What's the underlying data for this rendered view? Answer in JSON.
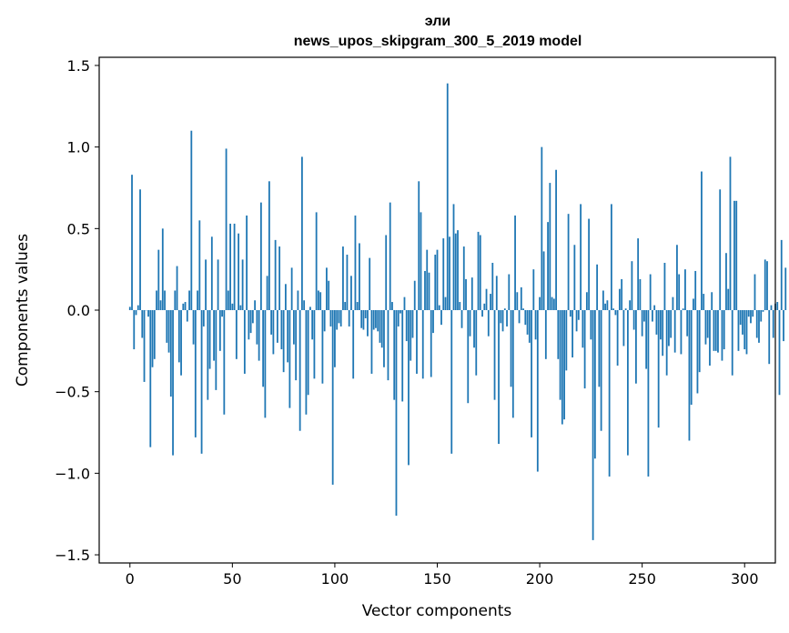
{
  "chart_data": {
    "type": "bar",
    "title_line1": "эли",
    "title_line2": "news_upos_skipgram_300_5_2019 model",
    "xlabel": "Vector components",
    "ylabel": "Components values",
    "xlim": [
      -15,
      315
    ],
    "ylim": [
      -1.55,
      1.55
    ],
    "xticks": [
      0,
      50,
      100,
      150,
      200,
      250,
      300
    ],
    "xtick_labels": [
      "0",
      "50",
      "100",
      "150",
      "200",
      "250",
      "300"
    ],
    "yticks": [
      -1.5,
      -1.0,
      -0.5,
      0.0,
      0.5,
      1.0,
      1.5
    ],
    "ytick_labels": [
      "−1.5",
      "−1.0",
      "−0.5",
      "0.0",
      "0.5",
      "1.0",
      "1.5"
    ],
    "bar_color": "#1f77b4",
    "values": [
      0.02,
      0.83,
      -0.24,
      -0.03,
      0.03,
      0.74,
      -0.17,
      -0.44,
      0.0,
      -0.04,
      -0.84,
      -0.35,
      -0.3,
      0.12,
      0.37,
      0.06,
      0.5,
      0.12,
      -0.2,
      -0.26,
      -0.53,
      -0.89,
      0.12,
      0.27,
      -0.32,
      -0.4,
      0.04,
      0.05,
      -0.07,
      0.12,
      1.1,
      -0.21,
      -0.78,
      0.12,
      0.55,
      -0.88,
      -0.1,
      0.31,
      -0.55,
      -0.36,
      0.45,
      -0.31,
      -0.49,
      0.31,
      -0.25,
      -0.04,
      -0.64,
      0.99,
      0.12,
      0.53,
      0.04,
      0.53,
      -0.3,
      0.47,
      0.03,
      0.31,
      -0.39,
      0.58,
      -0.18,
      -0.14,
      -0.08,
      0.06,
      -0.21,
      -0.31,
      0.66,
      -0.47,
      -0.66,
      0.21,
      0.79,
      -0.15,
      -0.27,
      0.43,
      -0.2,
      0.39,
      -0.24,
      -0.38,
      0.16,
      -0.32,
      -0.6,
      0.26,
      -0.21,
      -0.43,
      0.12,
      -0.74,
      0.94,
      0.06,
      -0.64,
      -0.52,
      0.02,
      -0.18,
      -0.42,
      0.6,
      0.12,
      0.11,
      -0.45,
      -0.13,
      0.26,
      0.18,
      -0.1,
      -1.07,
      -0.35,
      -0.12,
      -0.08,
      -0.1,
      0.39,
      0.05,
      0.34,
      -0.1,
      0.21,
      -0.42,
      0.58,
      0.05,
      0.41,
      -0.11,
      -0.12,
      -0.05,
      -0.16,
      0.32,
      -0.39,
      -0.12,
      -0.11,
      -0.13,
      -0.2,
      -0.23,
      -0.35,
      0.46,
      -0.43,
      0.66,
      0.05,
      -0.55,
      -1.26,
      -0.1,
      -0.02,
      -0.56,
      0.08,
      -0.19,
      -0.95,
      -0.31,
      -0.17,
      0.18,
      -0.39,
      0.79,
      0.6,
      -0.42,
      0.24,
      0.37,
      0.23,
      -0.41,
      -0.14,
      0.34,
      0.37,
      0.03,
      -0.09,
      0.44,
      0.08,
      1.39,
      0.45,
      -0.88,
      0.65,
      0.47,
      0.49,
      0.05,
      -0.11,
      0.39,
      0.19,
      -0.57,
      -0.16,
      0.2,
      -0.23,
      -0.4,
      0.48,
      0.46,
      -0.04,
      0.04,
      0.13,
      -0.16,
      0.1,
      0.29,
      -0.55,
      0.21,
      -0.82,
      -0.08,
      -0.13,
      0.01,
      -0.1,
      0.22,
      -0.47,
      -0.66,
      0.58,
      0.11,
      -0.08,
      0.14,
      0.01,
      -0.09,
      -0.15,
      -0.2,
      -0.78,
      0.25,
      -0.18,
      -0.99,
      0.08,
      1.0,
      0.36,
      -0.3,
      0.54,
      0.78,
      0.08,
      0.07,
      0.86,
      -0.3,
      -0.55,
      -0.7,
      -0.67,
      -0.37,
      0.59,
      -0.04,
      -0.29,
      0.4,
      -0.13,
      -0.06,
      0.65,
      -0.23,
      -0.48,
      0.11,
      0.56,
      -0.18,
      -1.41,
      -0.91,
      0.28,
      -0.47,
      -0.74,
      0.12,
      0.04,
      0.06,
      -1.02,
      0.65,
      0.01,
      -0.03,
      -0.34,
      0.13,
      0.19,
      -0.22,
      0.01,
      -0.89,
      0.06,
      0.3,
      -0.12,
      -0.45,
      0.44,
      0.19,
      -0.16,
      -0.07,
      -0.36,
      -1.02,
      0.22,
      -0.07,
      0.03,
      -0.15,
      -0.72,
      -0.18,
      -0.28,
      0.29,
      -0.4,
      -0.22,
      -0.17,
      0.08,
      -0.26,
      0.4,
      0.22,
      -0.27,
      0.01,
      0.25,
      -0.16,
      -0.8,
      -0.58,
      0.07,
      0.24,
      -0.51,
      -0.38,
      0.85,
      0.1,
      -0.21,
      -0.17,
      -0.34,
      0.11,
      -0.25,
      -0.25,
      -0.26,
      0.74,
      -0.31,
      -0.24,
      0.35,
      0.13,
      0.94,
      -0.4,
      0.67,
      0.67,
      -0.25,
      -0.09,
      -0.15,
      -0.24,
      -0.27,
      -0.04,
      -0.08,
      -0.04,
      0.22,
      -0.17,
      -0.2,
      -0.07,
      -0.01,
      0.31,
      0.3,
      -0.33,
      0.03,
      -0.17,
      0.04,
      0.05,
      -0.52,
      0.43,
      -0.19,
      0.26
    ]
  }
}
